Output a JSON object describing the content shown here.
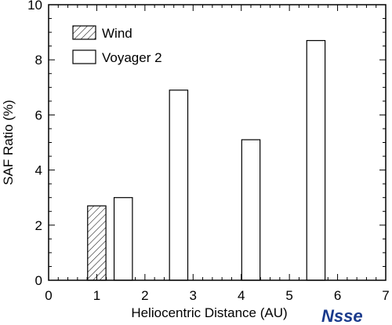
{
  "chart_data": {
    "type": "bar",
    "xlabel": "Heliocentric Distance (AU)",
    "ylabel": "SAF Ratio (%)",
    "xlim": [
      0,
      7
    ],
    "ylim": [
      0,
      10
    ],
    "x_ticks": [
      "0",
      "1",
      "2",
      "3",
      "4",
      "5",
      "6",
      "7"
    ],
    "y_ticks": [
      "0",
      "2",
      "4",
      "6",
      "8",
      "10"
    ],
    "series": [
      {
        "name": "Wind",
        "style": "hatched",
        "x": [
          1.0
        ],
        "width": 0.38,
        "values": [
          2.7
        ]
      },
      {
        "name": "Voyager 2",
        "style": "open",
        "x": [
          1.55,
          2.7,
          4.2,
          5.55
        ],
        "width": 0.38,
        "values": [
          3.0,
          6.9,
          5.1,
          8.7
        ]
      }
    ],
    "legend_position": "top-left",
    "grid": false
  },
  "logo": {
    "text": "Nsse",
    "color": "#1a3a8c"
  }
}
